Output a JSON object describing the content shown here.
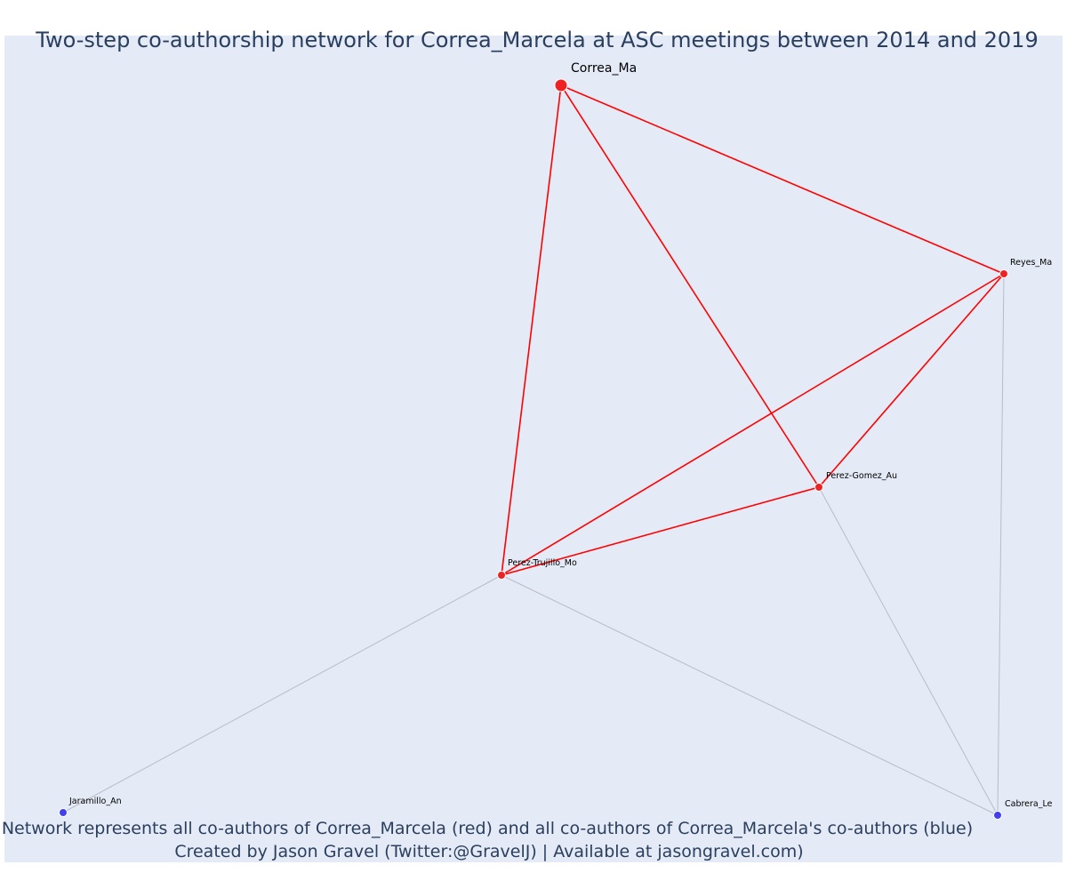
{
  "title": "Two-step co-authorship network for Correa_Marcela at ASC meetings between 2014 and 2019",
  "footer": {
    "line1": "Network represents all co-authors of Correa_Marcela (red) and all co-authors of Correa_Marcela's co-authors (blue)",
    "line2": "Created by Jason Gravel (Twitter:@GravelJ) | Available at jasongravel.com)"
  },
  "colors": {
    "primary": "#ee2222",
    "secondary": "#4040ee",
    "primary_edge": "#ff0000",
    "secondary_edge": "#b8bcc8"
  },
  "network": {
    "nodes": [
      {
        "id": "Correa_Ma",
        "label": "Correa_Ma",
        "group": "primary",
        "focal": true
      },
      {
        "id": "Reyes_Ma",
        "label": "Reyes_Ma",
        "group": "primary"
      },
      {
        "id": "Perez-Gomez_Au",
        "label": "Perez-Gomez_Au",
        "group": "primary"
      },
      {
        "id": "Perez-Trujillo_Mo",
        "label": "Perez-Trujillo_Mo",
        "group": "primary"
      },
      {
        "id": "Jaramillo_An",
        "label": "Jaramillo_An",
        "group": "secondary"
      },
      {
        "id": "Cabrera_Le",
        "label": "Cabrera_Le",
        "group": "secondary"
      }
    ],
    "edges": [
      {
        "source": "Correa_Ma",
        "target": "Reyes_Ma",
        "type": "primary"
      },
      {
        "source": "Correa_Ma",
        "target": "Perez-Gomez_Au",
        "type": "primary"
      },
      {
        "source": "Correa_Ma",
        "target": "Perez-Trujillo_Mo",
        "type": "primary"
      },
      {
        "source": "Reyes_Ma",
        "target": "Perez-Gomez_Au",
        "type": "primary"
      },
      {
        "source": "Reyes_Ma",
        "target": "Perez-Trujillo_Mo",
        "type": "primary"
      },
      {
        "source": "Perez-Gomez_Au",
        "target": "Perez-Trujillo_Mo",
        "type": "primary"
      },
      {
        "source": "Perez-Trujillo_Mo",
        "target": "Jaramillo_An",
        "type": "secondary"
      },
      {
        "source": "Perez-Trujillo_Mo",
        "target": "Cabrera_Le",
        "type": "secondary"
      },
      {
        "source": "Perez-Gomez_Au",
        "target": "Cabrera_Le",
        "type": "secondary"
      },
      {
        "source": "Reyes_Ma",
        "target": "Cabrera_Le",
        "type": "secondary"
      }
    ]
  }
}
